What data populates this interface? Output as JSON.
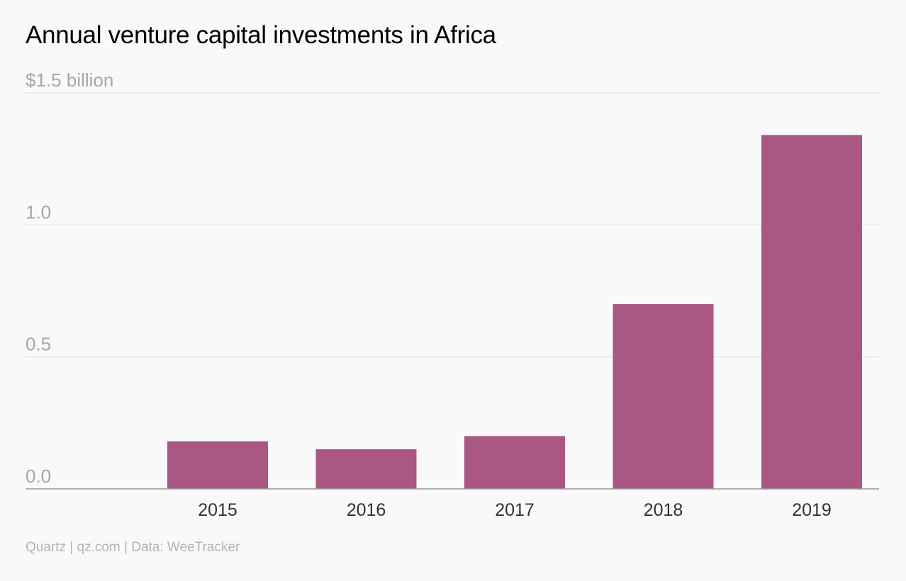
{
  "title": "Annual venture capital investments in Africa",
  "footer": "Quartz | qz.com | Data: WeeTracker",
  "colors": {
    "bar": "#aa5783",
    "grid": "#e2e2e2",
    "axis": "#999999",
    "background": "#f9f9f9"
  },
  "chart_data": {
    "type": "bar",
    "title": "Annual venture capital investments in Africa",
    "xlabel": "",
    "ylabel": "",
    "categories": [
      "2015",
      "2016",
      "2017",
      "2018",
      "2019"
    ],
    "values": [
      0.18,
      0.15,
      0.2,
      0.7,
      1.34
    ],
    "ylim": [
      0,
      1.5
    ],
    "yticks": [
      0,
      0.5,
      1.0,
      1.5
    ],
    "ytick_labels": [
      "0.0",
      "0.5",
      "1.0",
      "$1.5 billion"
    ],
    "grid": true,
    "source": "Data: WeeTracker"
  }
}
